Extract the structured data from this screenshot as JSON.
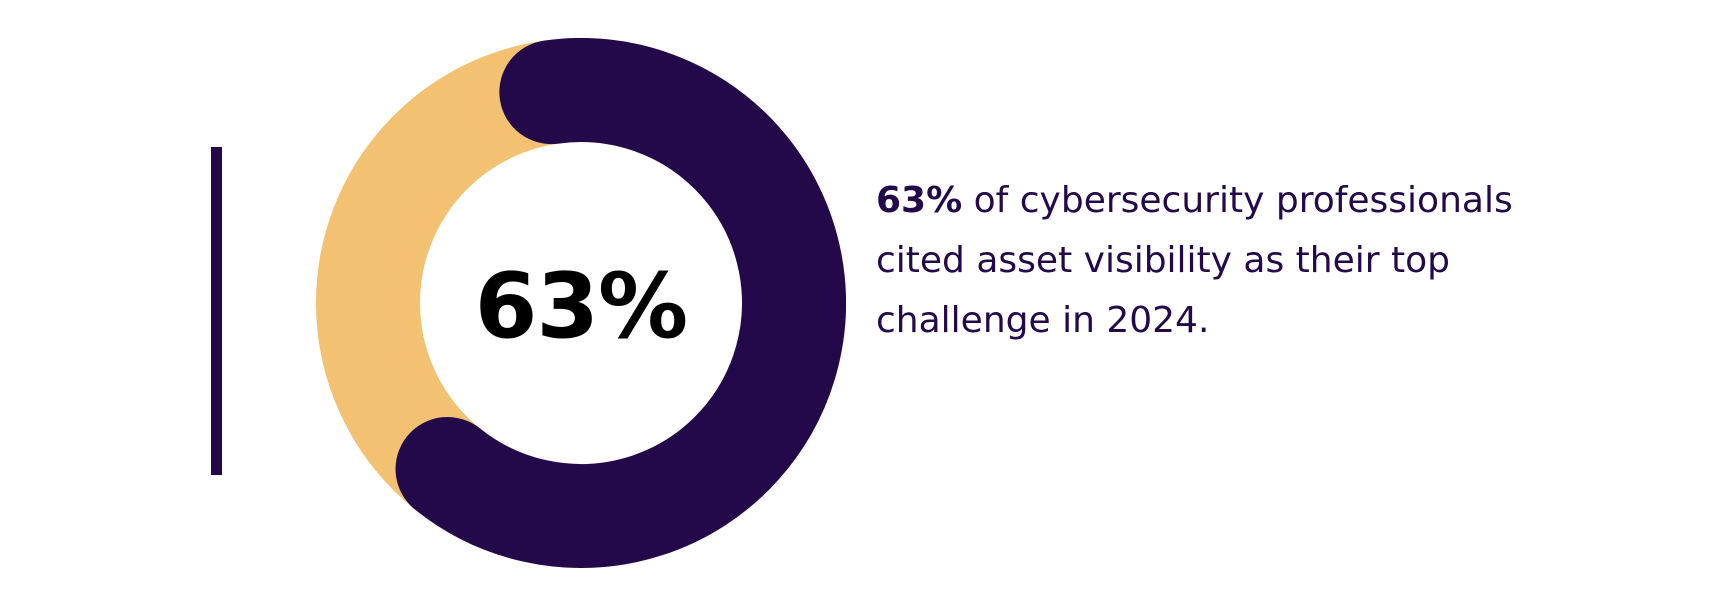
{
  "colors": {
    "background": "#ffffff",
    "primary": "#24094a",
    "secondary": "#f2c171",
    "center_text": "#000000"
  },
  "chart_data": {
    "type": "pie",
    "style": "donut",
    "center_label": "63%",
    "slices": [
      {
        "value": 63,
        "color": "#24094a"
      },
      {
        "value": 37,
        "color": "#f2c171"
      }
    ]
  },
  "statement": {
    "highlight": "63%",
    "text": " of cybersecurity professionals cited asset visibility as their top challenge in 2024."
  }
}
